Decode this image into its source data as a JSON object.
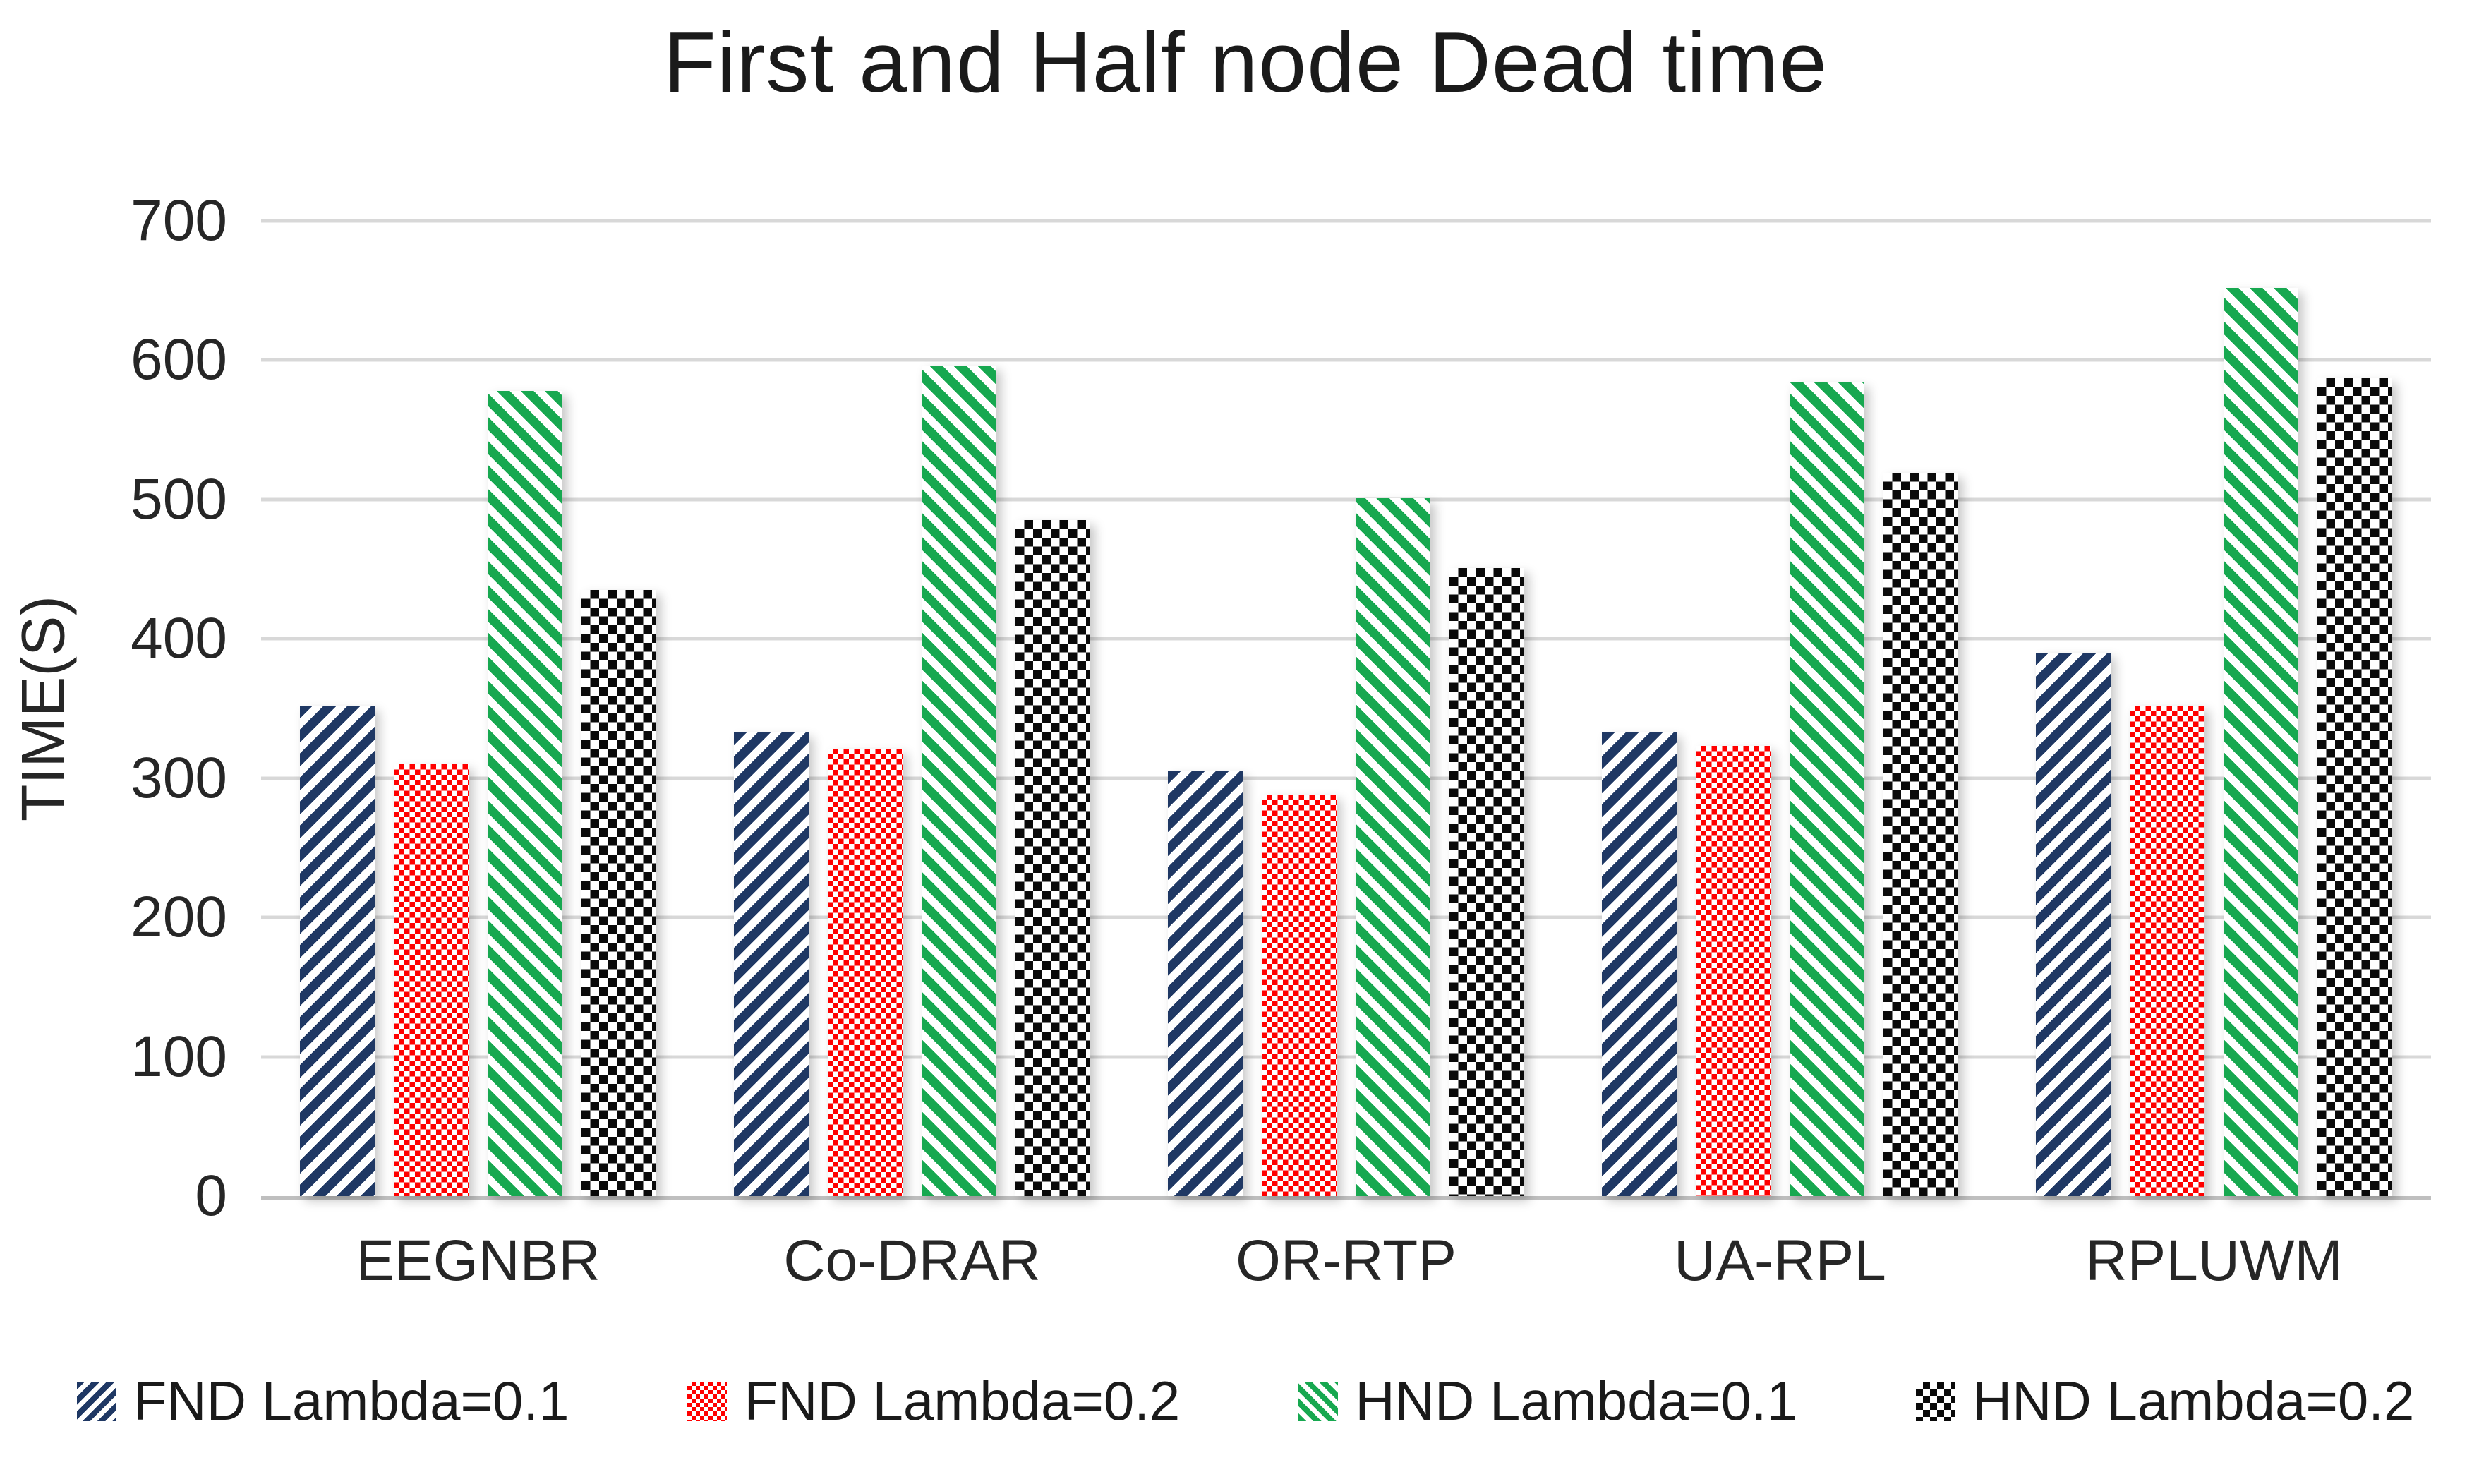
{
  "title": "First and Half node Dead time",
  "y_axis": {
    "label": "TIME(S)"
  },
  "chart_data": {
    "type": "bar",
    "title": "First and Half node Dead time",
    "xlabel": "",
    "ylabel": "TIME(S)",
    "ylim": [
      0,
      700
    ],
    "y_ticks": [
      700,
      600,
      500,
      400,
      300,
      200,
      100,
      0
    ],
    "grid": "horizontal",
    "legend_position": "bottom",
    "categories": [
      "EEGNBR",
      "Co-DRAR",
      "OR-RTP",
      "UA-RPL",
      "RPLUWM"
    ],
    "series": [
      {
        "name": "FND Lambda=0.1",
        "pattern": "diagonal-up",
        "color": "#1F3864",
        "values": [
          352,
          333,
          305,
          333,
          390
        ]
      },
      {
        "name": "FND Lambda=0.2",
        "pattern": "checker-small",
        "color": "#FF0000",
        "values": [
          310,
          321,
          288,
          323,
          352
        ]
      },
      {
        "name": "HND Lambda=0.1",
        "pattern": "diagonal-down",
        "color": "#17A850",
        "values": [
          578,
          596,
          501,
          584,
          652
        ]
      },
      {
        "name": "HND Lambda=0.2",
        "pattern": "checker-large",
        "color": "#0A0A0A",
        "values": [
          435,
          485,
          451,
          519,
          587
        ]
      }
    ]
  }
}
